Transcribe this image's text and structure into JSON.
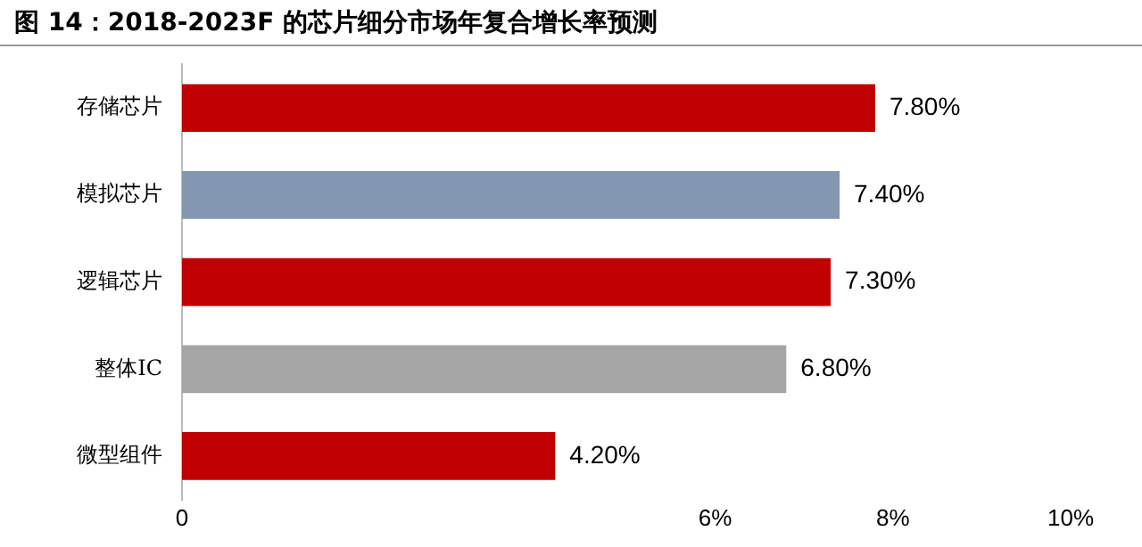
{
  "chart_data": {
    "type": "bar",
    "orientation": "horizontal",
    "title": "图 14：2018-2023F 的芯片细分市场年复合增长率预测",
    "categories": [
      "存储芯片",
      "模拟芯片",
      "逻辑芯片",
      "整体IC",
      "微型组件"
    ],
    "values": [
      7.8,
      7.4,
      7.3,
      6.8,
      4.2
    ],
    "colors": [
      "#c00000",
      "#8497b0",
      "#c00000",
      "#a6a6a6",
      "#c00000"
    ],
    "value_labels": [
      "7.80%",
      "7.40%",
      "7.30%",
      "6.80%",
      "4.20%"
    ],
    "xlim": [
      0,
      10
    ],
    "xticks": [
      {
        "value": 0,
        "label": "0"
      },
      {
        "value": 6,
        "label": "6%"
      },
      {
        "value": 8,
        "label": "8%"
      },
      {
        "value": 10,
        "label": "10%"
      }
    ],
    "grid": false,
    "legend": false
  }
}
